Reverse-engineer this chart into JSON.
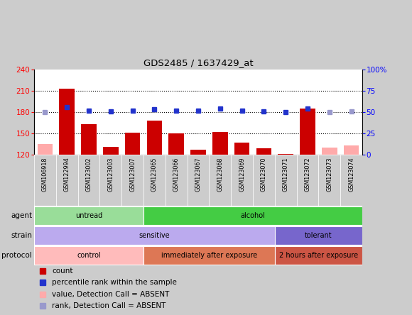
{
  "title": "GDS2485 / 1637429_at",
  "samples": [
    "GSM106918",
    "GSM122994",
    "GSM123002",
    "GSM123003",
    "GSM123007",
    "GSM123065",
    "GSM123066",
    "GSM123067",
    "GSM123068",
    "GSM123069",
    "GSM123070",
    "GSM123071",
    "GSM123072",
    "GSM123073",
    "GSM123074"
  ],
  "counts": [
    135,
    213,
    163,
    131,
    151,
    168,
    150,
    127,
    152,
    137,
    129,
    121,
    185,
    130,
    133
  ],
  "count_absent_flags": [
    true,
    false,
    false,
    false,
    false,
    false,
    false,
    false,
    false,
    false,
    false,
    false,
    false,
    true,
    true
  ],
  "percentile": [
    50,
    56,
    52,
    51,
    52,
    53,
    52,
    52,
    54,
    52,
    51,
    50,
    54,
    50,
    51
  ],
  "percentile_absent_flags": [
    true,
    false,
    false,
    false,
    false,
    false,
    false,
    false,
    false,
    false,
    false,
    false,
    false,
    true,
    true
  ],
  "ylim_left": [
    120,
    240
  ],
  "ylim_right": [
    0,
    100
  ],
  "yticks_left": [
    120,
    150,
    180,
    210,
    240
  ],
  "yticks_right": [
    0,
    25,
    50,
    75,
    100
  ],
  "ytick_labels_right": [
    "0",
    "25",
    "50",
    "75",
    "100%"
  ],
  "bar_color": "#cc0000",
  "bar_absent_color": "#ffaaaa",
  "dot_color": "#2233cc",
  "dot_absent_color": "#9999cc",
  "background_color": "#cccccc",
  "plot_bg_color": "#ffffff",
  "agent_groups": [
    {
      "label": "untread",
      "start": 0,
      "end": 5,
      "color": "#99dd99"
    },
    {
      "label": "alcohol",
      "start": 5,
      "end": 15,
      "color": "#44cc44"
    }
  ],
  "strain_groups": [
    {
      "label": "sensitive",
      "start": 0,
      "end": 11,
      "color": "#bbaaee"
    },
    {
      "label": "tolerant",
      "start": 11,
      "end": 15,
      "color": "#7766cc"
    }
  ],
  "protocol_groups": [
    {
      "label": "control",
      "start": 0,
      "end": 5,
      "color": "#ffbbbb"
    },
    {
      "label": "immediately after exposure",
      "start": 5,
      "end": 11,
      "color": "#dd7755"
    },
    {
      "label": "2 hours after exposure",
      "start": 11,
      "end": 15,
      "color": "#cc5544"
    }
  ],
  "legend_items": [
    {
      "label": "count",
      "color": "#cc0000"
    },
    {
      "label": "percentile rank within the sample",
      "color": "#2233cc"
    },
    {
      "label": "value, Detection Call = ABSENT",
      "color": "#ffaaaa"
    },
    {
      "label": "rank, Detection Call = ABSENT",
      "color": "#9999cc"
    }
  ]
}
